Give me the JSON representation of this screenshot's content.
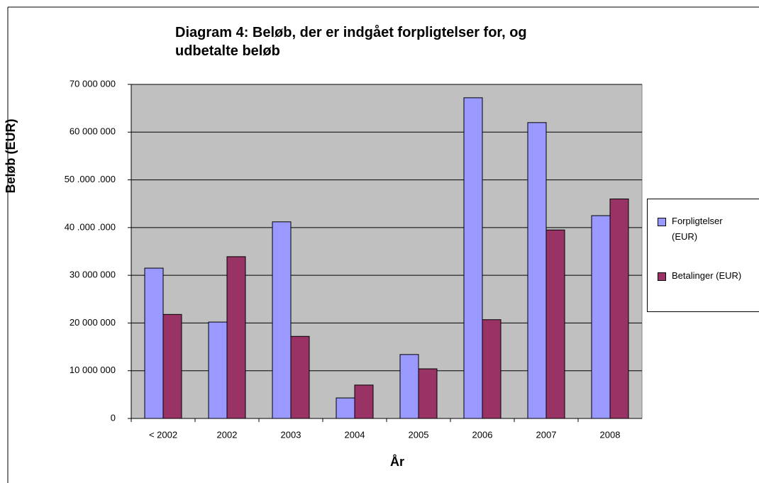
{
  "chart_data": {
    "type": "bar",
    "title": "Diagram 4: Beløb, der er indgået forpligtelser for, og udbetalte beløb",
    "x_label": "År",
    "y_label": "Beløb (EUR)",
    "categories": [
      "< 2002",
      "2002",
      "2003",
      "2004",
      "2005",
      "2006",
      "2007",
      "2008"
    ],
    "series": [
      {
        "name": "Forpligtelser (EUR)",
        "color": "#9999ff",
        "values": [
          31500000,
          20200000,
          41200000,
          4300000,
          13400000,
          67200000,
          62000000,
          42500000
        ]
      },
      {
        "name": "Betalinger (EUR)",
        "color": "#993366",
        "values": [
          21800000,
          33900000,
          17200000,
          7000000,
          10400000,
          20700000,
          39500000,
          46000000
        ]
      }
    ],
    "ylim": [
      0,
      70000000
    ],
    "yticks": [
      0,
      {
        "value": 10000000,
        "label": "10 000 000"
      },
      {
        "value": 20000000,
        "label": "20 000 000"
      },
      {
        "value": 30000000,
        "label": "30 000 000"
      },
      {
        "value": 40000000,
        "label": "40 .000 .000"
      },
      {
        "value": 50000000,
        "label": "50 .000 .000"
      },
      {
        "value": 60000000,
        "label": "60 000 000"
      },
      {
        "value": 70000000,
        "label": "70 000 000"
      }
    ],
    "grid": true,
    "legend": "right",
    "plot_background": "#c0c0c0"
  }
}
